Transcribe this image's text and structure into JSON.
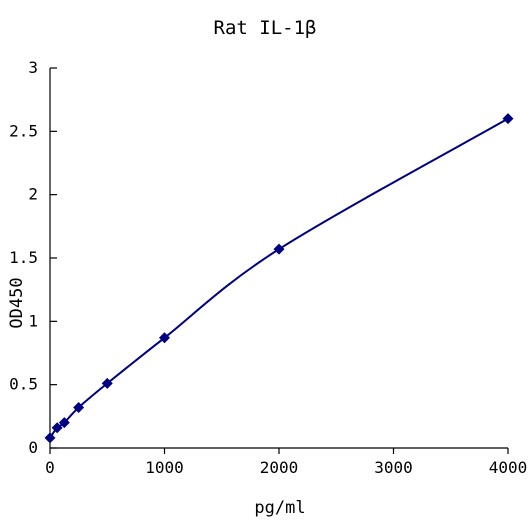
{
  "chart_data": {
    "type": "scatter",
    "title": "Rat IL-1β",
    "xlabel": "pg/ml",
    "ylabel": "OD450",
    "xlim": [
      0,
      4000
    ],
    "ylim": [
      0,
      3
    ],
    "xticks": [
      0,
      1000,
      2000,
      3000,
      4000
    ],
    "yticks": [
      0,
      0.5,
      1,
      1.5,
      2,
      2.5,
      3
    ],
    "xtick_labels": [
      "0",
      "1000",
      "2000",
      "3000",
      "4000"
    ],
    "ytick_labels": [
      "0",
      "0.5",
      "1",
      "1.5",
      "2",
      "2.5",
      "3"
    ],
    "grid": false,
    "legend": "none",
    "series": [
      {
        "x": [
          0,
          62.5,
          125,
          250,
          500,
          1000,
          2000,
          4000
        ],
        "y": [
          0.08,
          0.16,
          0.2,
          0.32,
          0.51,
          0.87,
          1.57,
          2.6
        ],
        "marker": "diamond",
        "line": "smooth",
        "color": "#000080"
      }
    ]
  }
}
